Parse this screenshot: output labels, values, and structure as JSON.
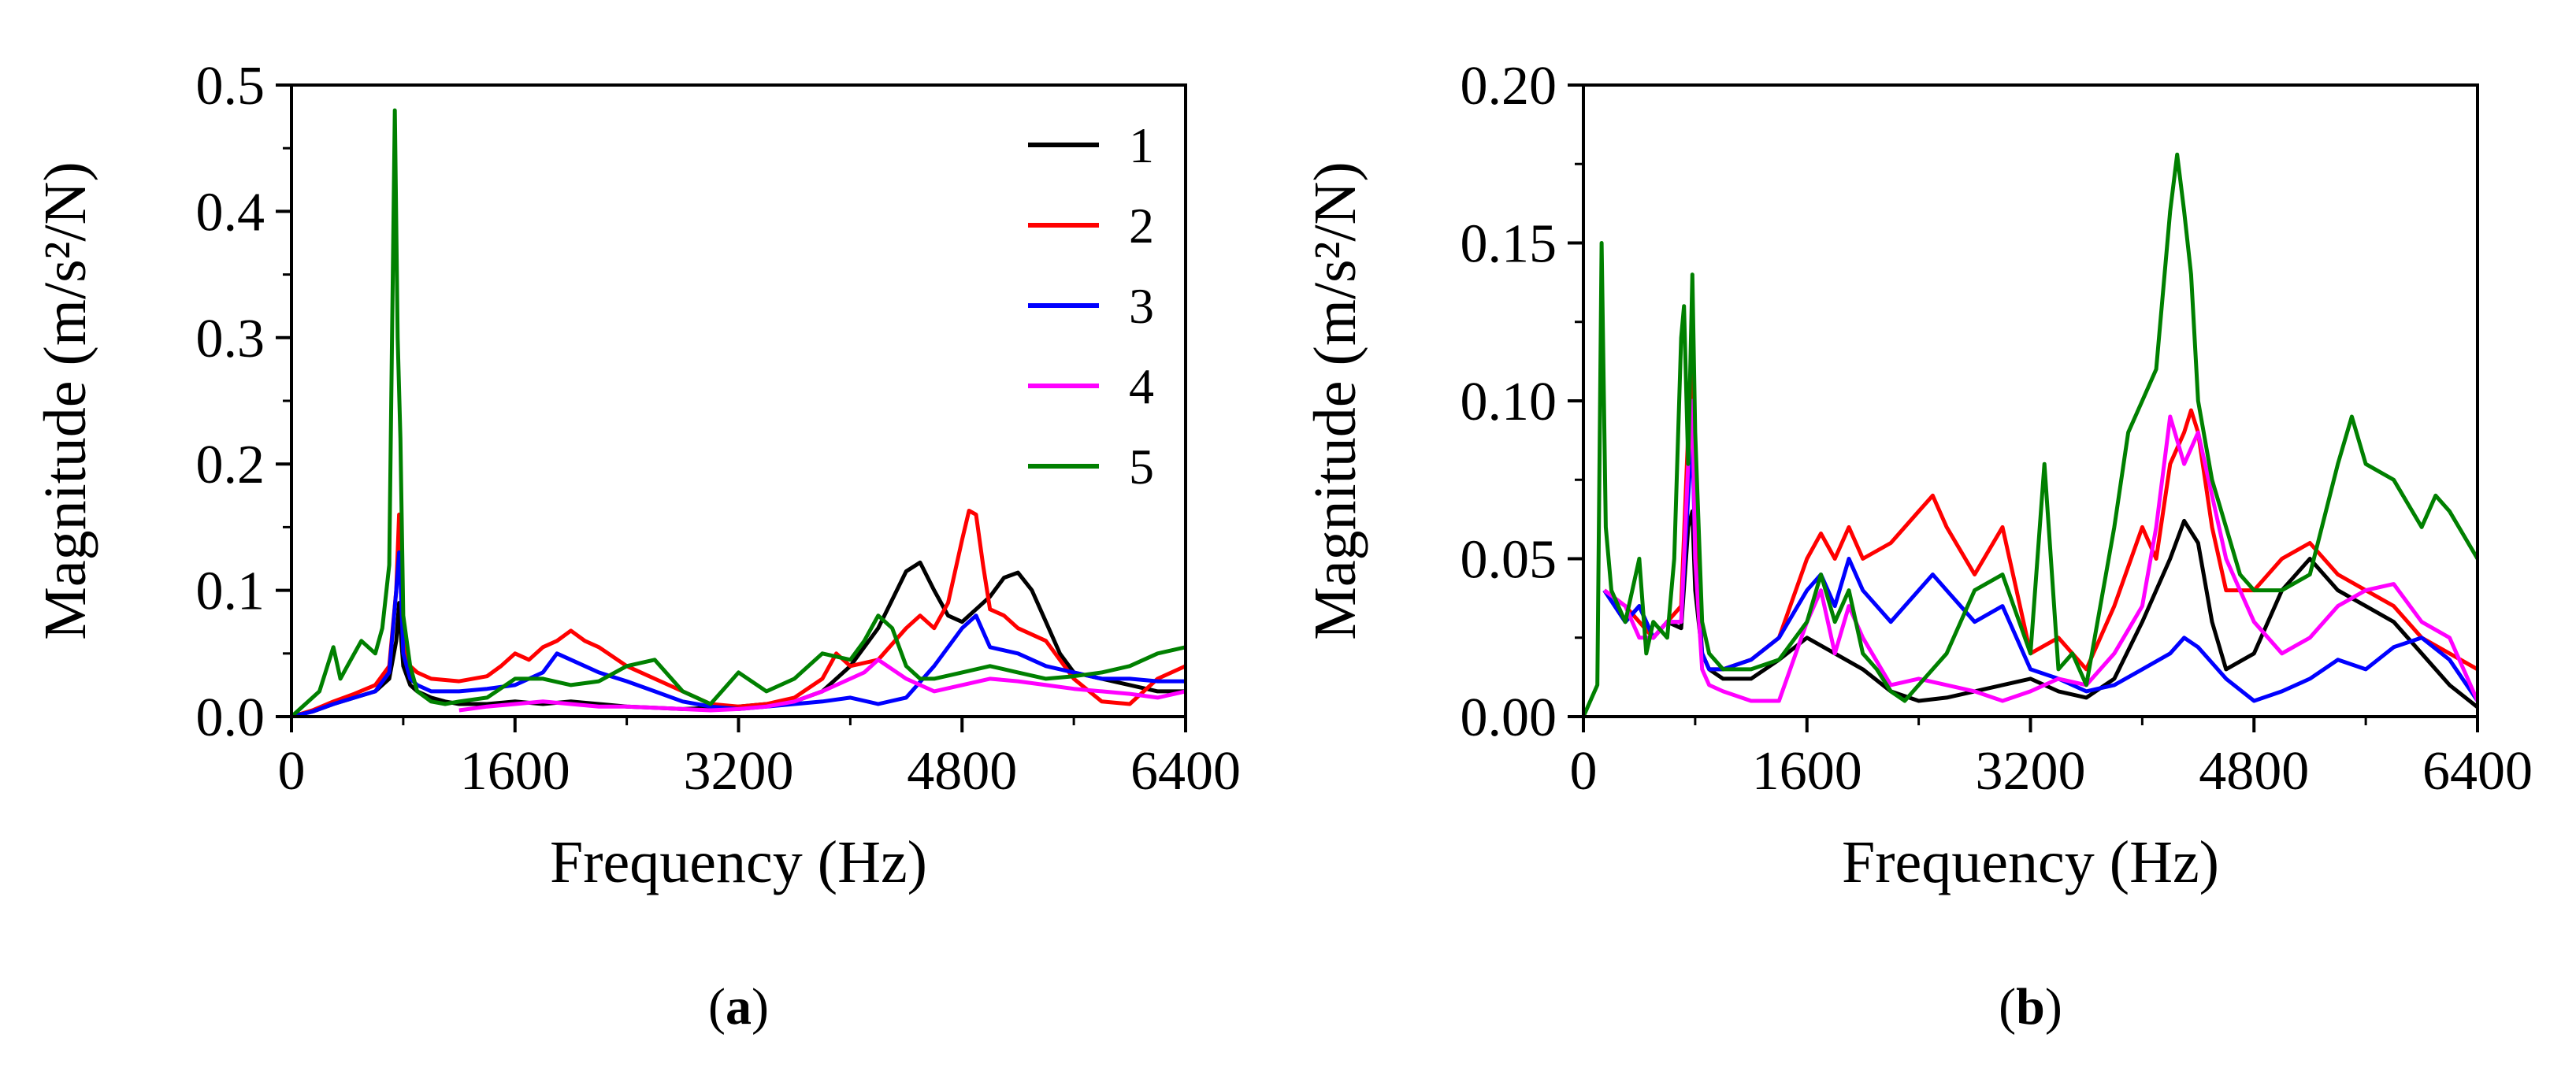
{
  "chart_data": [
    {
      "type": "line",
      "panel_label": "a",
      "xlabel": "Frequency (Hz)",
      "ylabel": "Magnitude (m/s²/N)",
      "xlim": [
        0,
        6400
      ],
      "ylim": [
        0,
        0.5
      ],
      "xticks": [
        "0",
        "1600",
        "3200",
        "4800",
        "6400"
      ],
      "xtick_values": [
        0,
        1600,
        3200,
        4800,
        6400
      ],
      "yticks": [
        "0.0",
        "0.1",
        "0.2",
        "0.3",
        "0.4",
        "0.5"
      ],
      "ytick_values": [
        0,
        0.1,
        0.2,
        0.3,
        0.4,
        0.5
      ],
      "legend": [
        "1",
        "2",
        "3",
        "4",
        "5"
      ],
      "legend_position": "top-right",
      "series": [
        {
          "name": "1",
          "color": "#000000",
          "x": [
            0,
            150,
            300,
            450,
            600,
            700,
            750,
            770,
            780,
            800,
            850,
            900,
            1000,
            1100,
            1200,
            1400,
            1600,
            1800,
            2000,
            2200,
            2400,
            2600,
            2800,
            3000,
            3200,
            3400,
            3600,
            3800,
            4000,
            4200,
            4400,
            4500,
            4600,
            4700,
            4800,
            4900,
            5000,
            5100,
            5200,
            5300,
            5400,
            5500,
            5600,
            5800,
            6000,
            6200,
            6400
          ],
          "y": [
            0.0,
            0.004,
            0.01,
            0.015,
            0.02,
            0.03,
            0.06,
            0.09,
            0.07,
            0.04,
            0.025,
            0.02,
            0.015,
            0.012,
            0.01,
            0.01,
            0.012,
            0.01,
            0.012,
            0.01,
            0.008,
            0.007,
            0.006,
            0.007,
            0.008,
            0.01,
            0.012,
            0.02,
            0.04,
            0.07,
            0.115,
            0.122,
            0.1,
            0.08,
            0.075,
            0.085,
            0.095,
            0.11,
            0.114,
            0.1,
            0.075,
            0.05,
            0.035,
            0.03,
            0.025,
            0.02,
            0.02
          ]
        },
        {
          "name": "2",
          "color": "#ff0000",
          "x": [
            0,
            150,
            300,
            450,
            600,
            700,
            750,
            770,
            780,
            800,
            850,
            900,
            1000,
            1200,
            1400,
            1500,
            1600,
            1700,
            1800,
            1900,
            2000,
            2100,
            2200,
            2400,
            2600,
            2800,
            3000,
            3200,
            3400,
            3600,
            3800,
            3900,
            4000,
            4200,
            4400,
            4500,
            4600,
            4700,
            4800,
            4850,
            4900,
            4950,
            5000,
            5100,
            5200,
            5400,
            5600,
            5800,
            6000,
            6200,
            6400
          ],
          "y": [
            0.0,
            0.005,
            0.012,
            0.018,
            0.025,
            0.04,
            0.1,
            0.16,
            0.13,
            0.06,
            0.04,
            0.035,
            0.03,
            0.028,
            0.032,
            0.04,
            0.05,
            0.045,
            0.055,
            0.06,
            0.068,
            0.06,
            0.055,
            0.04,
            0.03,
            0.02,
            0.01,
            0.008,
            0.01,
            0.015,
            0.03,
            0.05,
            0.04,
            0.045,
            0.07,
            0.08,
            0.07,
            0.09,
            0.14,
            0.163,
            0.16,
            0.12,
            0.085,
            0.08,
            0.07,
            0.06,
            0.03,
            0.012,
            0.01,
            0.03,
            0.04
          ]
        },
        {
          "name": "3",
          "color": "#0000ff",
          "x": [
            0,
            150,
            300,
            450,
            600,
            700,
            750,
            770,
            780,
            800,
            850,
            900,
            1000,
            1200,
            1400,
            1600,
            1800,
            1900,
            2000,
            2100,
            2200,
            2400,
            2600,
            2800,
            3000,
            3200,
            3400,
            3600,
            3800,
            4000,
            4200,
            4400,
            4600,
            4800,
            4900,
            5000,
            5200,
            5400,
            5600,
            5800,
            6000,
            6200,
            6400
          ],
          "y": [
            0.0,
            0.004,
            0.01,
            0.015,
            0.02,
            0.035,
            0.1,
            0.13,
            0.11,
            0.05,
            0.03,
            0.025,
            0.02,
            0.02,
            0.022,
            0.025,
            0.035,
            0.05,
            0.045,
            0.04,
            0.035,
            0.028,
            0.02,
            0.012,
            0.008,
            0.006,
            0.008,
            0.01,
            0.012,
            0.015,
            0.01,
            0.015,
            0.04,
            0.07,
            0.08,
            0.055,
            0.05,
            0.04,
            0.035,
            0.03,
            0.03,
            0.028,
            0.028
          ]
        },
        {
          "name": "4",
          "color": "#ff00ff",
          "x": [
            1200,
            1400,
            1600,
            1800,
            2000,
            2200,
            2400,
            2600,
            2800,
            3000,
            3200,
            3400,
            3600,
            3800,
            4000,
            4100,
            4200,
            4400,
            4600,
            4800,
            5000,
            5200,
            5400,
            5600,
            5800,
            6000,
            6200,
            6400
          ],
          "y": [
            0.005,
            0.008,
            0.01,
            0.012,
            0.01,
            0.008,
            0.008,
            0.007,
            0.006,
            0.005,
            0.006,
            0.008,
            0.012,
            0.02,
            0.03,
            0.035,
            0.045,
            0.03,
            0.02,
            0.025,
            0.03,
            0.028,
            0.025,
            0.022,
            0.02,
            0.018,
            0.015,
            0.02
          ]
        },
        {
          "name": "5",
          "color": "#008000",
          "x": [
            0,
            100,
            200,
            300,
            350,
            400,
            500,
            600,
            650,
            700,
            740,
            760,
            780,
            800,
            850,
            900,
            1000,
            1100,
            1200,
            1400,
            1600,
            1800,
            2000,
            2200,
            2400,
            2600,
            2800,
            3000,
            3200,
            3400,
            3600,
            3800,
            4000,
            4100,
            4200,
            4300,
            4400,
            4500,
            4600,
            4800,
            5000,
            5200,
            5400,
            5600,
            5800,
            6000,
            6200,
            6400
          ],
          "y": [
            0.0,
            0.01,
            0.02,
            0.055,
            0.03,
            0.04,
            0.06,
            0.05,
            0.07,
            0.12,
            0.48,
            0.3,
            0.22,
            0.08,
            0.04,
            0.02,
            0.012,
            0.01,
            0.012,
            0.015,
            0.03,
            0.03,
            0.025,
            0.028,
            0.04,
            0.045,
            0.02,
            0.01,
            0.035,
            0.02,
            0.03,
            0.05,
            0.045,
            0.06,
            0.08,
            0.07,
            0.04,
            0.03,
            0.03,
            0.035,
            0.04,
            0.035,
            0.03,
            0.032,
            0.035,
            0.04,
            0.05,
            0.055
          ]
        }
      ]
    },
    {
      "type": "line",
      "panel_label": "b",
      "xlabel": "Frequency (Hz)",
      "ylabel": "Magnitude (m/s²/N)",
      "xlim": [
        0,
        6400
      ],
      "ylim": [
        0,
        0.2
      ],
      "xticks": [
        "0",
        "1600",
        "3200",
        "4800",
        "6400"
      ],
      "xtick_values": [
        0,
        1600,
        3200,
        4800,
        6400
      ],
      "yticks": [
        "0.00",
        "0.05",
        "0.10",
        "0.15",
        "0.20"
      ],
      "ytick_values": [
        0,
        0.05,
        0.1,
        0.15,
        0.2
      ],
      "series": [
        {
          "name": "1",
          "color": "#000000",
          "x": [
            150,
            300,
            400,
            500,
            600,
            700,
            750,
            780,
            800,
            850,
            900,
            1000,
            1200,
            1400,
            1600,
            1800,
            2000,
            2200,
            2400,
            2600,
            2800,
            3000,
            3200,
            3400,
            3600,
            3800,
            4000,
            4200,
            4300,
            4400,
            4500,
            4600,
            4800,
            5000,
            5200,
            5400,
            5600,
            5800,
            6000,
            6200,
            6400
          ],
          "y": [
            0.04,
            0.03,
            0.035,
            0.025,
            0.03,
            0.028,
            0.06,
            0.065,
            0.04,
            0.02,
            0.015,
            0.012,
            0.012,
            0.018,
            0.025,
            0.02,
            0.015,
            0.008,
            0.005,
            0.006,
            0.008,
            0.01,
            0.012,
            0.008,
            0.006,
            0.012,
            0.03,
            0.05,
            0.062,
            0.055,
            0.03,
            0.015,
            0.02,
            0.04,
            0.05,
            0.04,
            0.035,
            0.03,
            0.02,
            0.01,
            0.003
          ]
        },
        {
          "name": "2",
          "color": "#ff0000",
          "x": [
            150,
            300,
            400,
            500,
            600,
            700,
            750,
            780,
            800,
            850,
            900,
            1000,
            1200,
            1400,
            1600,
            1700,
            1800,
            1900,
            2000,
            2200,
            2400,
            2500,
            2600,
            2800,
            3000,
            3100,
            3200,
            3400,
            3600,
            3800,
            4000,
            4100,
            4200,
            4300,
            4350,
            4400,
            4500,
            4600,
            4800,
            5000,
            5200,
            5400,
            5600,
            5800,
            6000,
            6200,
            6400
          ],
          "y": [
            0.04,
            0.035,
            0.03,
            0.025,
            0.03,
            0.035,
            0.09,
            0.12,
            0.06,
            0.02,
            0.015,
            0.015,
            0.018,
            0.025,
            0.05,
            0.058,
            0.05,
            0.06,
            0.05,
            0.055,
            0.065,
            0.07,
            0.06,
            0.045,
            0.06,
            0.04,
            0.02,
            0.025,
            0.015,
            0.035,
            0.06,
            0.05,
            0.08,
            0.09,
            0.097,
            0.09,
            0.06,
            0.04,
            0.04,
            0.05,
            0.055,
            0.045,
            0.04,
            0.035,
            0.025,
            0.02,
            0.015
          ]
        },
        {
          "name": "3",
          "color": "#0000ff",
          "x": [
            150,
            300,
            400,
            500,
            600,
            700,
            750,
            780,
            800,
            850,
            900,
            1000,
            1200,
            1400,
            1600,
            1700,
            1800,
            1900,
            2000,
            2200,
            2400,
            2500,
            2600,
            2800,
            3000,
            3200,
            3400,
            3600,
            3800,
            4000,
            4200,
            4300,
            4400,
            4600,
            4800,
            5000,
            5200,
            5400,
            5600,
            5800,
            6000,
            6200,
            6400
          ],
          "y": [
            0.04,
            0.03,
            0.035,
            0.025,
            0.03,
            0.03,
            0.07,
            0.09,
            0.05,
            0.02,
            0.015,
            0.015,
            0.018,
            0.025,
            0.04,
            0.045,
            0.035,
            0.05,
            0.04,
            0.03,
            0.04,
            0.045,
            0.04,
            0.03,
            0.035,
            0.015,
            0.012,
            0.008,
            0.01,
            0.015,
            0.02,
            0.025,
            0.022,
            0.012,
            0.005,
            0.008,
            0.012,
            0.018,
            0.015,
            0.022,
            0.025,
            0.018,
            0.005
          ]
        },
        {
          "name": "4",
          "color": "#ff00ff",
          "x": [
            150,
            300,
            400,
            500,
            600,
            700,
            750,
            780,
            800,
            850,
            900,
            1000,
            1200,
            1400,
            1600,
            1700,
            1800,
            1900,
            2000,
            2200,
            2400,
            2600,
            2800,
            3000,
            3200,
            3400,
            3600,
            3800,
            4000,
            4100,
            4200,
            4300,
            4400,
            4500,
            4600,
            4700,
            4800,
            5000,
            5200,
            5400,
            5600,
            5800,
            6000,
            6200,
            6400
          ],
          "y": [
            0.04,
            0.035,
            0.025,
            0.025,
            0.03,
            0.03,
            0.08,
            0.1,
            0.05,
            0.015,
            0.01,
            0.008,
            0.005,
            0.005,
            0.03,
            0.04,
            0.02,
            0.035,
            0.025,
            0.01,
            0.012,
            0.01,
            0.008,
            0.005,
            0.008,
            0.012,
            0.01,
            0.02,
            0.035,
            0.06,
            0.095,
            0.08,
            0.09,
            0.07,
            0.05,
            0.04,
            0.03,
            0.02,
            0.025,
            0.035,
            0.04,
            0.042,
            0.03,
            0.025,
            0.005
          ]
        },
        {
          "name": "5",
          "color": "#008000",
          "x": [
            0,
            100,
            130,
            160,
            200,
            300,
            400,
            450,
            500,
            600,
            650,
            700,
            720,
            750,
            780,
            800,
            850,
            900,
            1000,
            1200,
            1400,
            1600,
            1700,
            1800,
            1900,
            2000,
            2100,
            2200,
            2300,
            2400,
            2600,
            2800,
            3000,
            3200,
            3300,
            3400,
            3500,
            3600,
            3800,
            3900,
            4000,
            4100,
            4200,
            4250,
            4300,
            4350,
            4400,
            4500,
            4600,
            4700,
            4800,
            5000,
            5200,
            5400,
            5500,
            5600,
            5800,
            6000,
            6100,
            6200,
            6400
          ],
          "y": [
            0.0,
            0.01,
            0.15,
            0.06,
            0.04,
            0.03,
            0.05,
            0.02,
            0.03,
            0.025,
            0.05,
            0.12,
            0.13,
            0.08,
            0.14,
            0.09,
            0.03,
            0.02,
            0.015,
            0.015,
            0.018,
            0.03,
            0.045,
            0.03,
            0.04,
            0.02,
            0.015,
            0.008,
            0.005,
            0.01,
            0.02,
            0.04,
            0.045,
            0.02,
            0.08,
            0.015,
            0.02,
            0.01,
            0.06,
            0.09,
            0.1,
            0.11,
            0.16,
            0.178,
            0.16,
            0.14,
            0.1,
            0.075,
            0.06,
            0.045,
            0.04,
            0.04,
            0.045,
            0.08,
            0.095,
            0.08,
            0.075,
            0.06,
            0.07,
            0.065,
            0.05
          ]
        }
      ]
    }
  ]
}
